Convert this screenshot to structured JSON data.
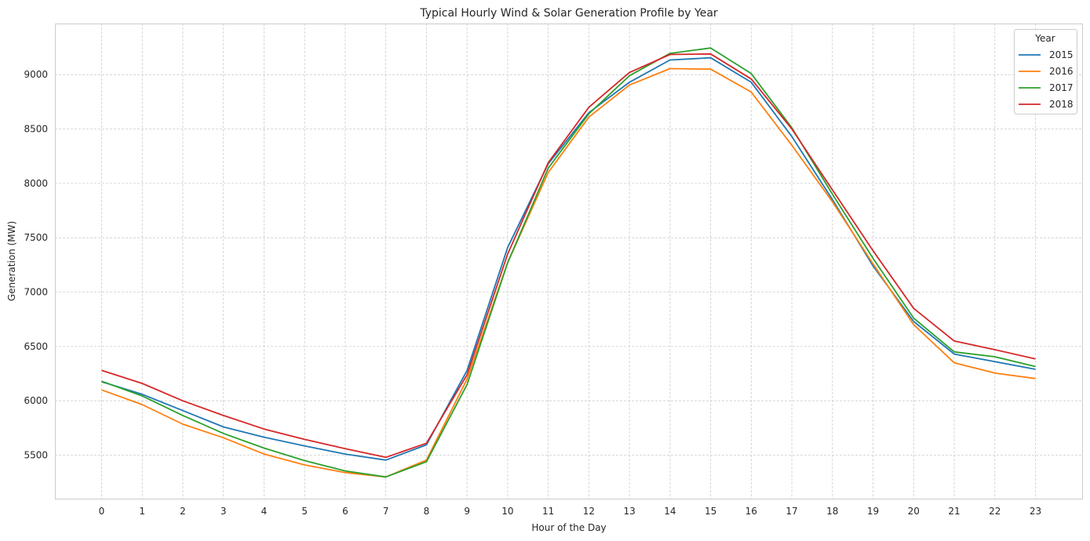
{
  "chart_data": {
    "type": "line",
    "title": "Typical Hourly Wind & Solar Generation Profile by Year",
    "xlabel": "Hour of the Day",
    "ylabel": "Generation (MW)",
    "x": [
      0,
      1,
      2,
      3,
      4,
      5,
      6,
      7,
      8,
      9,
      10,
      11,
      12,
      13,
      14,
      15,
      16,
      17,
      18,
      19,
      20,
      21,
      22,
      23
    ],
    "x_tick_labels": [
      "0",
      "1",
      "2",
      "3",
      "4",
      "5",
      "6",
      "7",
      "8",
      "9",
      "10",
      "11",
      "12",
      "13",
      "14",
      "15",
      "16",
      "17",
      "18",
      "19",
      "20",
      "21",
      "22",
      "23"
    ],
    "ylim": [
      5100,
      9470
    ],
    "xlim": [
      -1.15,
      24.15
    ],
    "y_ticks": [
      5500,
      6000,
      6500,
      7000,
      7500,
      8000,
      8500,
      9000
    ],
    "y_tick_labels": [
      "5500",
      "6000",
      "6500",
      "7000",
      "7500",
      "8000",
      "8500",
      "9000"
    ],
    "grid": true,
    "legend_title": "Year",
    "legend_position": "top-right",
    "series": [
      {
        "name": "2015",
        "color": "#1f77b4",
        "values": [
          6175,
          6060,
          5910,
          5760,
          5665,
          5585,
          5510,
          5455,
          5595,
          6280,
          7410,
          8180,
          8650,
          8930,
          9135,
          9155,
          8930,
          8430,
          7850,
          7240,
          6730,
          6430,
          6360,
          6290
        ]
      },
      {
        "name": "2016",
        "color": "#ff7f0e",
        "values": [
          6100,
          5965,
          5785,
          5660,
          5510,
          5410,
          5340,
          5300,
          5455,
          6200,
          7270,
          8100,
          8610,
          8905,
          9055,
          9050,
          8840,
          8350,
          7830,
          7260,
          6700,
          6350,
          6255,
          6205
        ]
      },
      {
        "name": "2017",
        "color": "#2ca02c",
        "values": [
          6180,
          6045,
          5865,
          5700,
          5565,
          5450,
          5355,
          5300,
          5440,
          6150,
          7270,
          8140,
          8640,
          8990,
          9195,
          9245,
          9010,
          8510,
          7900,
          7310,
          6760,
          6450,
          6405,
          6315
        ]
      },
      {
        "name": "2018",
        "color": "#d62728",
        "values": [
          6280,
          6160,
          6000,
          5865,
          5740,
          5645,
          5560,
          5480,
          5610,
          6240,
          7350,
          8190,
          8700,
          9020,
          9185,
          9190,
          8960,
          8500,
          7940,
          7380,
          6850,
          6550,
          6470,
          6385
        ]
      }
    ]
  }
}
